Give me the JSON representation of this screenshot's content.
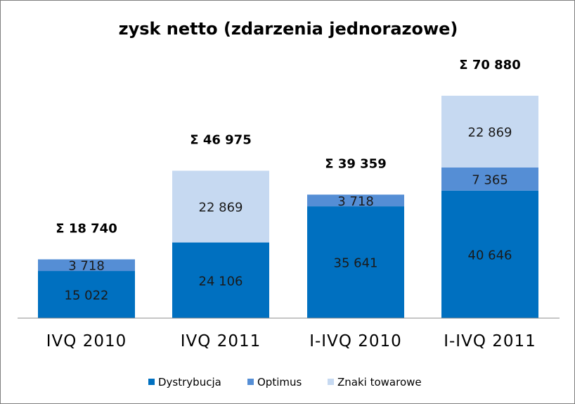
{
  "chart_data": {
    "type": "bar",
    "stacked": true,
    "title": "zysk netto (zdarzenia jednorazowe)",
    "categories": [
      "IVQ 2010",
      "IVQ 2011",
      "I-IVQ 2010",
      "I-IVQ 2011"
    ],
    "series": [
      {
        "name": "Dystrybucja",
        "color": "#0070C0",
        "values": [
          15022,
          24106,
          35641,
          40646
        ],
        "labels": [
          "15 022",
          "24 106",
          "35 641",
          "40 646"
        ]
      },
      {
        "name": "Optimus",
        "color": "#558ED5",
        "values": [
          3718,
          0,
          3718,
          7365
        ],
        "labels": [
          "3 718",
          "",
          "3 718",
          "7 365"
        ]
      },
      {
        "name": "Znaki towarowe",
        "color": "#C6D9F1",
        "values": [
          0,
          22869,
          0,
          22869
        ],
        "labels": [
          "",
          "22 869",
          "",
          "22 869"
        ]
      }
    ],
    "totals": [
      "Σ 18 740",
      "Σ 46 975",
      "Σ 39 359",
      "Σ 70 880"
    ],
    "legend_position": "bottom",
    "grid": false
  }
}
